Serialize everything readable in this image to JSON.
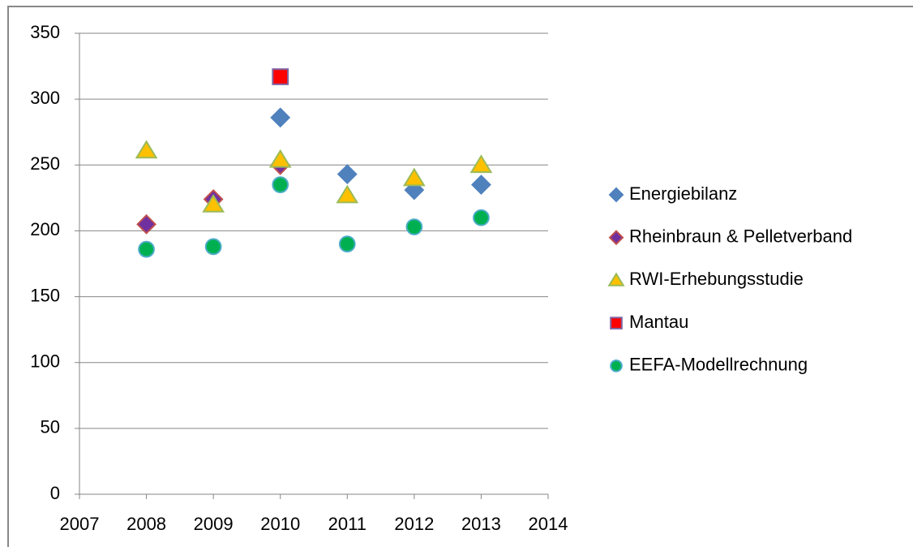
{
  "chart_data": {
    "type": "scatter",
    "xlim": [
      2007,
      2014
    ],
    "xticks": [
      2007,
      2008,
      2009,
      2010,
      2011,
      2012,
      2013,
      2014
    ],
    "ylim": [
      0,
      350
    ],
    "yticks": [
      0,
      50,
      100,
      150,
      200,
      250,
      300,
      350
    ],
    "grid": true,
    "legend": "right",
    "series": [
      {
        "name": "Energiebilanz",
        "color": "#4f81bd",
        "marker": "diamond",
        "x": [
          2010,
          2011,
          2012,
          2013
        ],
        "values": [
          286,
          243,
          231,
          235
        ]
      },
      {
        "name": "Rheinbraun & Pelletverband",
        "color": "#7030a0",
        "marker": "diamond",
        "x": [
          2008,
          2009,
          2010
        ],
        "values": [
          205,
          224,
          250
        ]
      },
      {
        "name": "RWI-Erhebungsstudie",
        "color": "#ffc000",
        "marker": "triangle",
        "x": [
          2008,
          2009,
          2010,
          2011,
          2012,
          2013
        ],
        "values": [
          261,
          220,
          254,
          227,
          240,
          250
        ]
      },
      {
        "name": "Mantau",
        "color": "#ff0000",
        "marker": "square",
        "x": [
          2010
        ],
        "values": [
          317
        ]
      },
      {
        "name": "EEFA-Modellrechnung",
        "color": "#00b050",
        "marker": "circle",
        "x": [
          2008,
          2009,
          2010,
          2011,
          2012,
          2013
        ],
        "values": [
          186,
          188,
          235,
          190,
          203,
          210
        ]
      }
    ]
  }
}
